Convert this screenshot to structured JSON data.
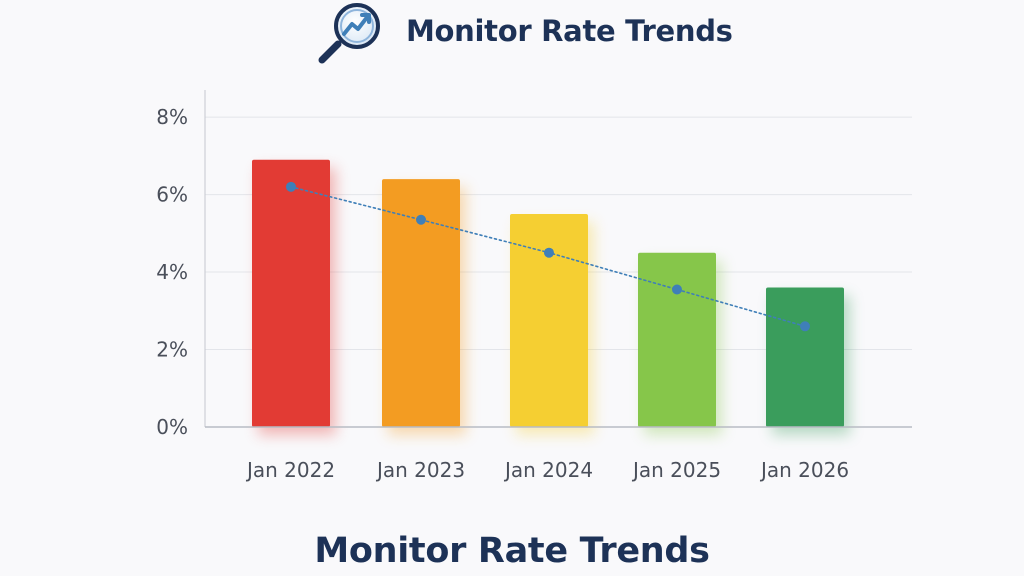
{
  "header": {
    "title": "Monitor Rate Trends",
    "logo_icon": "magnifier-trend-icon"
  },
  "footer": {
    "title": "Monitor Rate Trends"
  },
  "colors": {
    "title": "#1d3257",
    "trend_line": "#3f7fb8",
    "bars": [
      "#e23b34",
      "#f39c22",
      "#f5cf32",
      "#86c64a",
      "#3a9d5c"
    ]
  },
  "chart_data": {
    "type": "bar",
    "title": "Monitor Rate Trends",
    "categories": [
      "Jan 2022",
      "Jan 2023",
      "Jan 2024",
      "Jan 2025",
      "Jan 2026"
    ],
    "values": [
      6.9,
      6.4,
      5.5,
      4.5,
      3.6
    ],
    "trend_series": {
      "name": "trend",
      "style": "dotted line with markers",
      "values": [
        6.2,
        5.35,
        4.5,
        3.55,
        2.6
      ]
    },
    "ylim": [
      0,
      8.7
    ],
    "yticks": [
      0,
      2,
      4,
      6,
      8
    ],
    "ytick_labels": [
      "0%",
      "2%",
      "4%",
      "6%",
      "8%"
    ],
    "xlabel": "",
    "ylabel": "",
    "grid": true,
    "legend": "none"
  }
}
